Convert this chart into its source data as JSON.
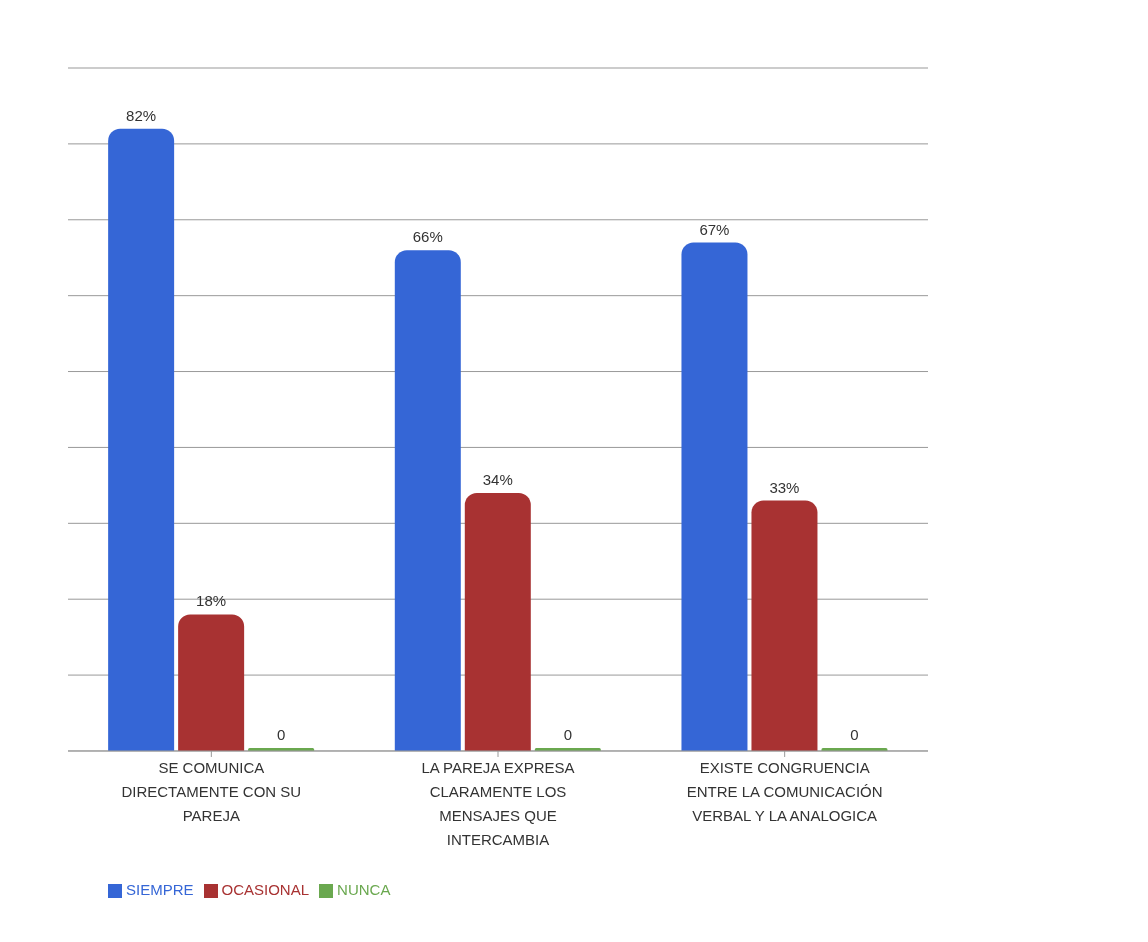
{
  "chart_data": {
    "type": "bar",
    "categories": [
      "SE COMUNICA DIRECTAMENTE CON SU PAREJA",
      "LA PAREJA EXPRESA CLARAMENTE LOS MENSAJES QUE INTERCAMBIA",
      "EXISTE CONGRUENCIA ENTRE LA COMUNICACIÓN VERBAL Y LA ANALOGICA"
    ],
    "series": [
      {
        "name": "SIEMPRE",
        "color": "#3566d6",
        "values": [
          82,
          66,
          67
        ],
        "value_labels": [
          "82%",
          "66%",
          "67%"
        ]
      },
      {
        "name": "OCASIONAL",
        "color": "#a83232",
        "values": [
          18,
          34,
          33
        ],
        "value_labels": [
          "18%",
          "34%",
          "33%"
        ]
      },
      {
        "name": "NUNCA",
        "color": "#6aa84f",
        "values": [
          0,
          0,
          0
        ],
        "value_labels": [
          "0",
          "0",
          "0"
        ]
      }
    ],
    "ylim": [
      0,
      90
    ],
    "yticks": [
      {
        "value": 0,
        "label": null
      },
      {
        "value": 10,
        "label": null
      },
      {
        "value": 20,
        "label": null
      },
      {
        "value": 30,
        "label": null
      },
      {
        "value": 40,
        "label": null
      },
      {
        "value": 50,
        "label": null
      },
      {
        "value": 60,
        "label": null
      },
      {
        "value": 70,
        "label": null
      },
      {
        "value": 80,
        "label": null
      },
      {
        "value": 90,
        "label": null
      }
    ],
    "tick_labels": "x",
    "grid": "y",
    "legend": "bottom left"
  }
}
